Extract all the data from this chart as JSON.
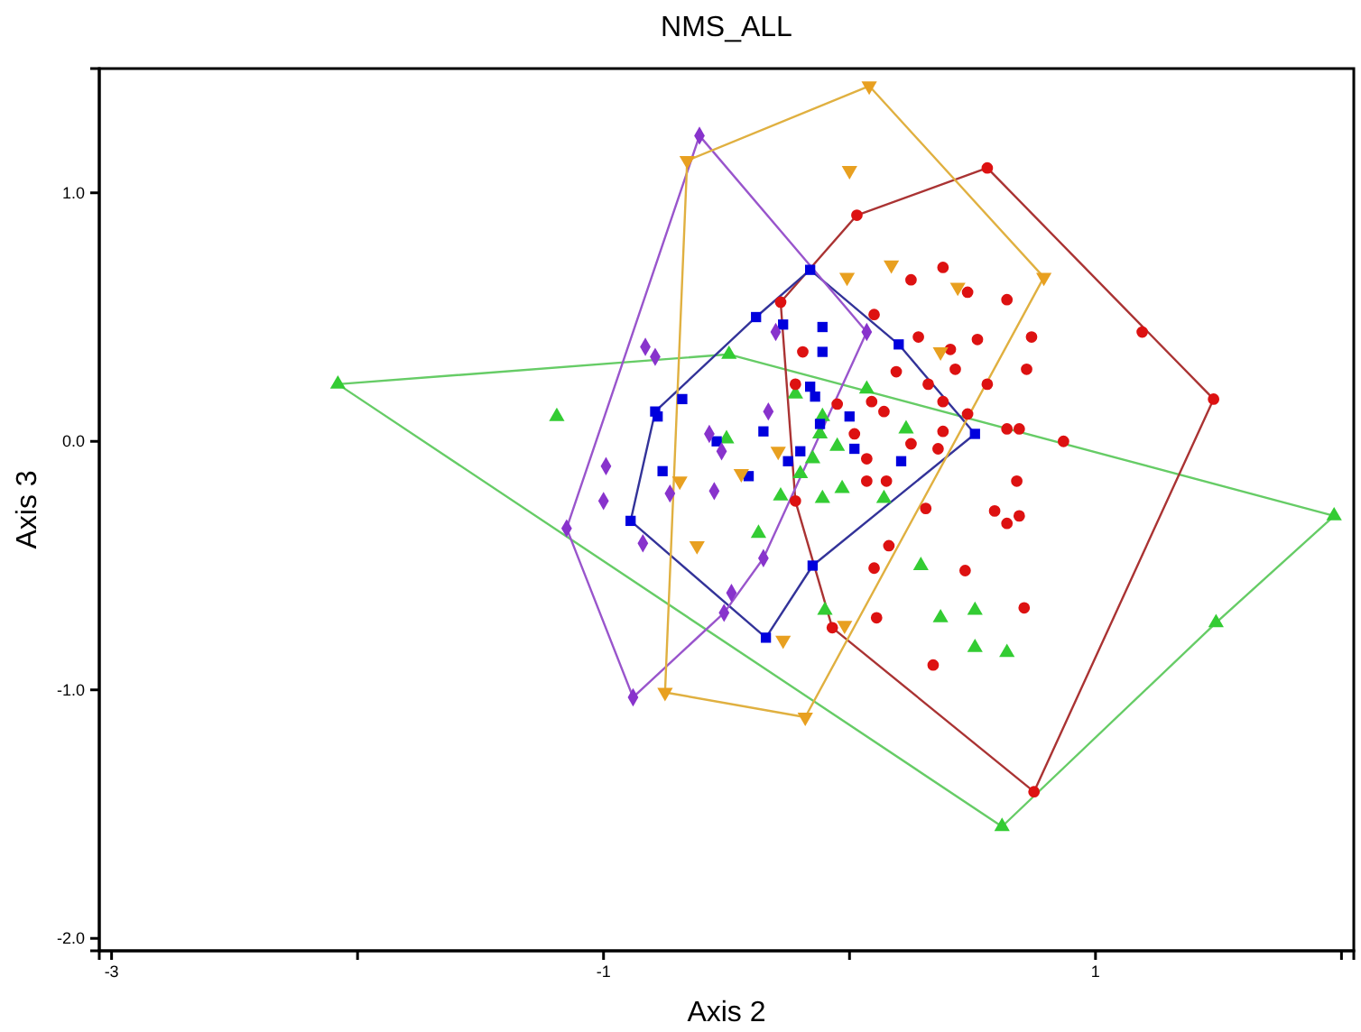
{
  "chart_data": {
    "type": "scatter",
    "title": "NMS_ALL",
    "xlabel": "Axis 2",
    "ylabel": "Axis 3",
    "xlim": [
      -3.05,
      2.05
    ],
    "ylim": [
      -2.05,
      1.5
    ],
    "xticks": [
      -3,
      {
        "value": -2,
        "label": null
      },
      -1,
      {
        "value": 0,
        "label": null
      },
      1,
      {
        "value": 2,
        "label": null
      }
    ],
    "yticks": [
      {
        "value": 1,
        "label": "1.0"
      },
      {
        "value": 0,
        "label": "0.0"
      },
      {
        "value": -1,
        "label": "-1.0"
      },
      {
        "value": -2,
        "label": "-2.0"
      }
    ],
    "grid": false,
    "series": [
      {
        "type": "line",
        "marker": "none",
        "color": "#66cc66",
        "x": [
          -2.08,
          -0.49,
          1.97
        ],
        "values": [
          0.23,
          0.35,
          -0.3
        ]
      },
      {
        "type": "line",
        "marker": "none",
        "color": "#66cc66",
        "x": [
          -2.08,
          0.62,
          1.49,
          1.97
        ],
        "values": [
          0.23,
          -1.55,
          -0.73,
          -0.3
        ]
      },
      {
        "type": "line",
        "marker": "none",
        "color": "#aa3333",
        "x": [
          -0.28,
          0.03,
          0.56,
          1.48
        ],
        "values": [
          0.56,
          0.91,
          1.1,
          0.17
        ]
      },
      {
        "type": "line",
        "marker": "none",
        "color": "#aa3333",
        "x": [
          -0.28,
          -0.22,
          -0.07,
          0.75,
          1.48
        ],
        "values": [
          0.56,
          -0.24,
          -0.75,
          -1.41,
          0.17
        ]
      },
      {
        "type": "line",
        "marker": "none",
        "color": "#333399",
        "x": [
          -0.89,
          -0.79,
          -0.38,
          -0.16,
          0.2,
          0.51
        ],
        "values": [
          -0.32,
          0.12,
          0.5,
          0.69,
          0.39,
          0.03
        ]
      },
      {
        "type": "line",
        "marker": "none",
        "color": "#333399",
        "x": [
          -0.89,
          -0.34,
          -0.15,
          0.51
        ],
        "values": [
          -0.32,
          -0.79,
          -0.5,
          0.03
        ]
      },
      {
        "type": "line",
        "marker": "none",
        "color": "#9955cc",
        "x": [
          -1.15,
          -0.61,
          0.07
        ],
        "values": [
          -0.35,
          1.23,
          0.44
        ]
      },
      {
        "type": "line",
        "marker": "none",
        "color": "#9955cc",
        "x": [
          -1.15,
          -0.88,
          -0.51,
          -0.35,
          0.07
        ],
        "values": [
          -0.35,
          -1.03,
          -0.69,
          -0.47,
          0.44
        ]
      },
      {
        "type": "line",
        "marker": "none",
        "color": "#e0b040",
        "x": [
          -0.75,
          -0.66,
          0.08,
          0.79
        ],
        "values": [
          -1.01,
          1.13,
          1.43,
          0.66
        ]
      },
      {
        "type": "line",
        "marker": "none",
        "color": "#e0b040",
        "x": [
          -0.75,
          -0.18,
          0.79
        ],
        "values": [
          -1.01,
          -1.11,
          0.66
        ]
      },
      {
        "marker": "triangle",
        "color": "#33cc33",
        "x": [
          -2.08,
          -0.49,
          1.97,
          1.49,
          0.62,
          -1.19,
          -0.22,
          0.07,
          -0.5,
          -0.11,
          -0.12,
          -0.05,
          -0.15,
          -0.2,
          -0.28,
          -0.11,
          -0.03,
          0.14,
          0.23,
          -0.37,
          0.29,
          -0.1,
          0.37,
          0.51,
          0.51,
          0.64
        ],
        "values": [
          0.23,
          0.35,
          -0.3,
          -0.73,
          -1.55,
          0.1,
          0.19,
          0.21,
          0.01,
          0.1,
          0.03,
          -0.02,
          -0.07,
          -0.13,
          -0.22,
          -0.23,
          -0.19,
          -0.23,
          0.05,
          -0.37,
          -0.5,
          -0.68,
          -0.71,
          -0.68,
          -0.83,
          -0.85
        ]
      },
      {
        "marker": "circle",
        "color": "#dd1111",
        "x": [
          0.03,
          0.56,
          1.48,
          0.75,
          -0.07,
          -0.22,
          -0.28,
          1.19,
          0.25,
          0.38,
          0.48,
          0.64,
          0.1,
          0.28,
          0.41,
          0.52,
          0.74,
          0.72,
          -0.19,
          0.19,
          0.43,
          0.56,
          0.32,
          0.38,
          -0.22,
          0.09,
          0.14,
          -0.05,
          0.48,
          0.38,
          0.64,
          0.69,
          0.87,
          0.02,
          0.25,
          0.36,
          0.07,
          0.07,
          0.15,
          0.31,
          0.68,
          0.59,
          0.64,
          0.69,
          0.16,
          0.1,
          0.47,
          0.11,
          0.71,
          0.34
        ],
        "values": [
          0.91,
          1.1,
          0.17,
          -1.41,
          -0.75,
          -0.24,
          0.56,
          0.44,
          0.65,
          0.7,
          0.6,
          0.57,
          0.51,
          0.42,
          0.37,
          0.41,
          0.42,
          0.29,
          0.36,
          0.28,
          0.29,
          0.23,
          0.23,
          0.16,
          0.23,
          0.16,
          0.12,
          0.15,
          0.11,
          0.04,
          0.05,
          0.05,
          0.0,
          0.03,
          -0.01,
          -0.03,
          -0.07,
          -0.16,
          -0.16,
          -0.27,
          -0.16,
          -0.28,
          -0.33,
          -0.3,
          -0.42,
          -0.51,
          -0.52,
          -0.71,
          -0.67,
          -0.9
        ]
      },
      {
        "marker": "square",
        "color": "#0000dd",
        "x": [
          -0.16,
          0.2,
          0.51,
          -0.15,
          -0.34,
          -0.89,
          -0.79,
          -0.38,
          -0.78,
          -0.27,
          -0.11,
          -0.11,
          -0.68,
          -0.16,
          -0.14,
          0.0,
          -0.12,
          -0.35,
          -0.54,
          -0.2,
          -0.25,
          0.02,
          0.21,
          -0.76,
          -0.41
        ],
        "values": [
          0.69,
          0.39,
          0.03,
          -0.5,
          -0.79,
          -0.32,
          0.12,
          0.5,
          0.1,
          0.47,
          0.46,
          0.36,
          0.17,
          0.22,
          0.18,
          0.1,
          0.07,
          0.04,
          0.0,
          -0.04,
          -0.08,
          -0.03,
          -0.08,
          -0.12,
          -0.14
        ]
      },
      {
        "marker": "diamond",
        "color": "#8833cc",
        "x": [
          -0.61,
          0.07,
          -0.35,
          -0.48,
          -0.51,
          -0.88,
          -1.15,
          -0.83,
          -0.79,
          -0.3,
          -0.33,
          -0.57,
          -0.52,
          -0.99,
          -1.0,
          -0.73,
          -0.55,
          -0.84
        ],
        "values": [
          1.23,
          0.44,
          -0.47,
          -0.61,
          -0.69,
          -1.03,
          -0.35,
          0.38,
          0.34,
          0.44,
          0.12,
          0.03,
          -0.04,
          -0.1,
          -0.24,
          -0.21,
          -0.2,
          -0.41
        ]
      },
      {
        "marker": "triangle-down",
        "color": "#e8a020",
        "x": [
          0.08,
          0.79,
          -0.18,
          -0.75,
          -0.66,
          0.0,
          0.17,
          -0.01,
          0.44,
          0.37,
          -0.29,
          -0.44,
          -0.69,
          -0.62,
          -0.27,
          -0.02
        ],
        "values": [
          1.43,
          0.66,
          -1.11,
          -1.01,
          1.13,
          1.09,
          0.71,
          0.66,
          0.62,
          0.36,
          -0.04,
          -0.13,
          -0.16,
          -0.42,
          -0.8,
          -0.74
        ]
      }
    ]
  }
}
